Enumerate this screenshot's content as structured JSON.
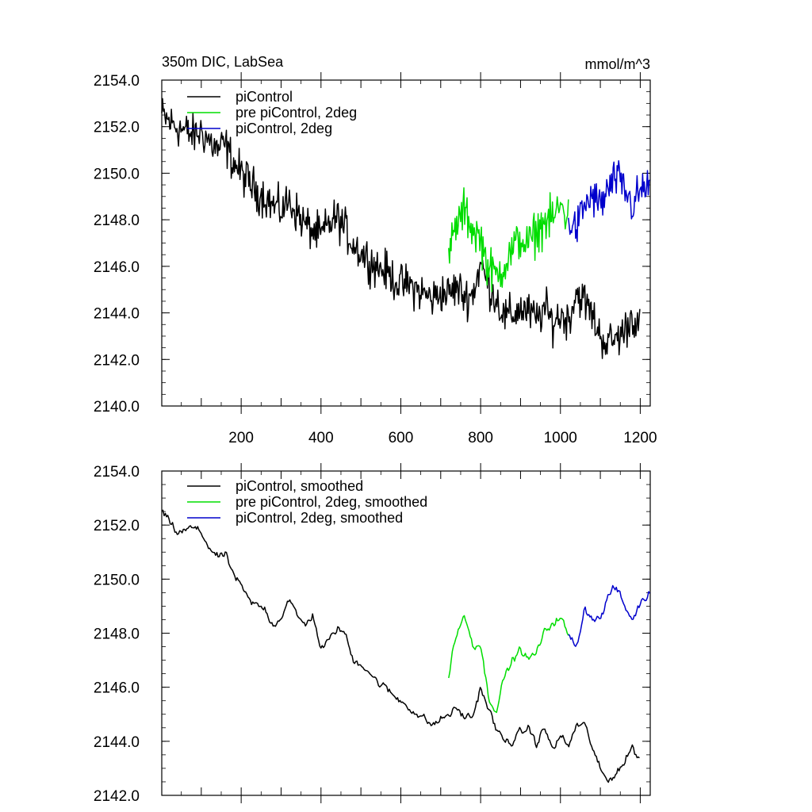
{
  "chart_data": [
    {
      "type": "line",
      "title_left": "350m DIC, LabSea",
      "title_right": "mmol/m^3",
      "xlim": [
        1,
        1225
      ],
      "ylim": [
        2140.0,
        2154.0
      ],
      "x_ticks": [
        200,
        400,
        600,
        800,
        1000,
        1200
      ],
      "x_tick_labels": [
        "200",
        "400",
        "600",
        "800",
        "1000",
        "1200"
      ],
      "y_ticks": [
        2140.0,
        2142.0,
        2144.0,
        2146.0,
        2148.0,
        2150.0,
        2152.0,
        2154.0
      ],
      "y_tick_labels": [
        "2140.0",
        "2142.0",
        "2144.0",
        "2146.0",
        "2148.0",
        "2150.0",
        "2152.0",
        "2154.0"
      ],
      "legend_position": "top-left",
      "series": [
        {
          "name": "piControl",
          "color": "#000000",
          "x": [
            1,
            20,
            40,
            60,
            80,
            100,
            120,
            140,
            160,
            180,
            200,
            220,
            240,
            260,
            280,
            300,
            320,
            340,
            360,
            380,
            400,
            420,
            440,
            460,
            480,
            500,
            520,
            540,
            560,
            580,
            600,
            620,
            640,
            660,
            680,
            700,
            720,
            740,
            760,
            780,
            800,
            820,
            840,
            860,
            880,
            900,
            920,
            940,
            960,
            980,
            1000,
            1020,
            1040,
            1060,
            1080,
            1100,
            1120,
            1140,
            1160,
            1180,
            1200
          ],
          "y": [
            2152.5,
            2152.2,
            2152.0,
            2151.8,
            2151.6,
            2151.8,
            2151.4,
            2151.0,
            2151.2,
            2150.5,
            2150.0,
            2149.6,
            2149.2,
            2149.0,
            2148.6,
            2148.4,
            2148.8,
            2148.3,
            2147.8,
            2147.5,
            2147.3,
            2147.8,
            2148.1,
            2147.6,
            2147.0,
            2146.6,
            2146.3,
            2146.0,
            2145.8,
            2145.5,
            2145.2,
            2145.2,
            2145.0,
            2144.8,
            2144.6,
            2144.9,
            2144.8,
            2145.1,
            2144.7,
            2144.8,
            2146.1,
            2145.2,
            2144.6,
            2143.8,
            2143.9,
            2144.2,
            2144.0,
            2143.7,
            2144.2,
            2143.6,
            2143.9,
            2143.7,
            2144.9,
            2144.5,
            2143.9,
            2143.0,
            2142.7,
            2142.9,
            2143.2,
            2143.9,
            2143.3
          ],
          "noise": 0.75
        },
        {
          "name": "pre piControl, 2deg",
          "color": "#00dd00",
          "x": [
            720,
            740,
            760,
            780,
            800,
            820,
            840,
            860,
            880,
            900,
            920,
            940,
            960,
            980,
            1000,
            1020
          ],
          "y": [
            2146.5,
            2147.8,
            2148.4,
            2147.6,
            2147.2,
            2145.9,
            2145.6,
            2146.1,
            2146.7,
            2147.2,
            2146.9,
            2147.5,
            2147.9,
            2148.0,
            2148.6,
            2148.1
          ],
          "noise": 0.8
        },
        {
          "name": "piControl, 2deg",
          "color": "#0000cc",
          "x": [
            1020,
            1040,
            1060,
            1080,
            1100,
            1120,
            1140,
            1160,
            1180,
            1200,
            1225
          ],
          "y": [
            2148.0,
            2147.6,
            2148.6,
            2149.0,
            2148.6,
            2149.3,
            2149.8,
            2149.3,
            2148.6,
            2149.2,
            2149.5
          ],
          "noise": 0.75
        }
      ]
    },
    {
      "type": "line",
      "xlim": [
        1,
        1225
      ],
      "ylim": [
        2142.0,
        2154.0
      ],
      "x_ticks": [
        200,
        400,
        600,
        800,
        1000,
        1200
      ],
      "y_ticks": [
        2142.0,
        2144.0,
        2146.0,
        2148.0,
        2150.0,
        2152.0,
        2154.0
      ],
      "y_tick_labels": [
        "2142.0",
        "2144.0",
        "2146.0",
        "2148.0",
        "2150.0",
        "2152.0",
        "2154.0"
      ],
      "legend_position": "top-left",
      "series": [
        {
          "name": "piControl, smoothed",
          "color": "#000000",
          "x": [
            1,
            20,
            40,
            60,
            80,
            100,
            120,
            140,
            160,
            180,
            200,
            220,
            240,
            260,
            280,
            300,
            320,
            340,
            360,
            380,
            400,
            420,
            440,
            460,
            480,
            500,
            520,
            540,
            560,
            580,
            600,
            620,
            640,
            660,
            680,
            700,
            720,
            740,
            760,
            780,
            800,
            820,
            840,
            860,
            880,
            900,
            920,
            940,
            960,
            980,
            1000,
            1020,
            1040,
            1060,
            1080,
            1100,
            1120,
            1140,
            1160,
            1180,
            1200
          ],
          "y": [
            2152.5,
            2152.1,
            2151.7,
            2151.8,
            2151.9,
            2151.7,
            2151.2,
            2150.8,
            2150.9,
            2150.2,
            2149.7,
            2149.2,
            2149.0,
            2148.9,
            2148.3,
            2148.6,
            2149.3,
            2148.6,
            2148.3,
            2148.7,
            2147.4,
            2147.7,
            2148.2,
            2148.0,
            2147.0,
            2146.9,
            2146.6,
            2146.2,
            2146.0,
            2145.7,
            2145.5,
            2145.3,
            2145.0,
            2144.8,
            2144.6,
            2144.8,
            2145.0,
            2145.2,
            2144.9,
            2144.9,
            2146.0,
            2145.2,
            2144.4,
            2144.0,
            2144.0,
            2144.3,
            2144.5,
            2143.9,
            2144.5,
            2143.7,
            2144.2,
            2143.8,
            2144.6,
            2144.6,
            2143.8,
            2142.9,
            2142.5,
            2142.9,
            2143.2,
            2143.8,
            2143.3
          ],
          "noise": 0.25
        },
        {
          "name": "pre piControl, 2deg, smoothed",
          "color": "#00dd00",
          "x": [
            720,
            730,
            740,
            760,
            780,
            800,
            820,
            840,
            860,
            880,
            900,
            920,
            940,
            960,
            980,
            1000,
            1020
          ],
          "y": [
            2146.3,
            2147.5,
            2147.9,
            2148.7,
            2147.6,
            2147.6,
            2145.6,
            2145.2,
            2146.4,
            2147.0,
            2147.4,
            2147.0,
            2147.3,
            2148.0,
            2148.4,
            2148.6,
            2147.9
          ],
          "noise": 0.25
        },
        {
          "name": "piControl, 2deg, smoothed",
          "color": "#0000cc",
          "x": [
            1020,
            1040,
            1060,
            1080,
            1100,
            1120,
            1140,
            1160,
            1180,
            1200,
            1225
          ],
          "y": [
            2147.9,
            2147.5,
            2148.9,
            2148.6,
            2148.5,
            2149.4,
            2149.7,
            2149.0,
            2148.5,
            2149.1,
            2149.5
          ],
          "noise": 0.25
        }
      ]
    }
  ]
}
